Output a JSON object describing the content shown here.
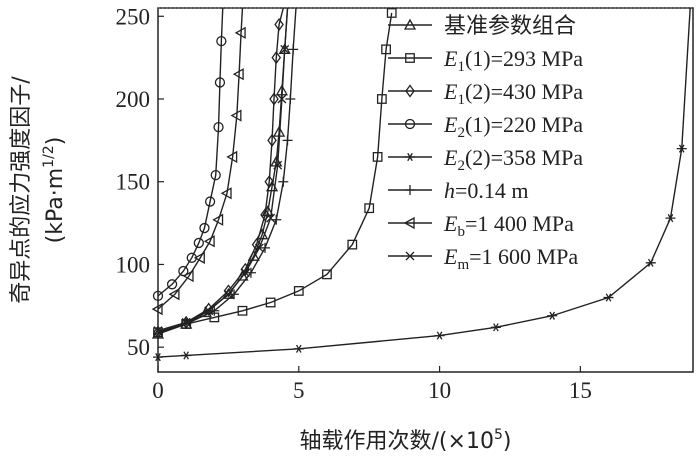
{
  "chart_data": {
    "type": "line",
    "title": "",
    "xlabel": "轴载作用次数/(×10",
    "xlabel_sup": "5",
    "xlabel_end": ")",
    "ylabel_line1": "奇异点的应力强度因子/",
    "ylabel_line2_a": "(kPa·m",
    "ylabel_line2_sup": "1/2",
    "ylabel_line2_b": ")",
    "xlim": [
      0,
      19
    ],
    "ylim": [
      35,
      255
    ],
    "xticks": [
      0,
      5,
      10,
      15
    ],
    "yticks": [
      50,
      100,
      150,
      200,
      250
    ],
    "grid": false,
    "legend_position": "top-right",
    "series": [
      {
        "name": "基准参数组合",
        "marker": "triangle-up",
        "x": [
          0,
          1,
          1.7,
          2.5,
          3.0,
          3.4,
          3.7,
          3.9,
          4.05,
          4.2,
          4.3,
          4.4,
          4.5,
          4.6
        ],
        "y": [
          58,
          64,
          71,
          82,
          93,
          105,
          118,
          132,
          147,
          162,
          180,
          205,
          230,
          255
        ]
      },
      {
        "name": "E₁(1)=293 MPa",
        "name_parts": [
          "E",
          "1",
          "(1)=293 MPa"
        ],
        "marker": "square",
        "x": [
          0,
          1,
          2,
          3,
          4,
          5,
          6,
          6.9,
          7.5,
          7.8,
          7.95,
          8.1,
          8.3
        ],
        "y": [
          59,
          64,
          68,
          72,
          77,
          84,
          94,
          112,
          134,
          165,
          200,
          230,
          252
        ]
      },
      {
        "name": "E₁(2)=430 MPa",
        "name_parts": [
          "E",
          "1",
          "(2)=430 MPa"
        ],
        "marker": "diamond",
        "x": [
          0,
          1,
          1.8,
          2.5,
          3.1,
          3.5,
          3.8,
          3.95,
          4.05,
          4.12,
          4.2,
          4.3,
          4.45
        ],
        "y": [
          59,
          65,
          73,
          84,
          97,
          112,
          130,
          150,
          175,
          200,
          225,
          245,
          255
        ]
      },
      {
        "name": "E₂(1)=220 MPa",
        "name_parts": [
          "E",
          "2",
          "(1)=220 MPa"
        ],
        "marker": "circle",
        "x": [
          0,
          0.5,
          0.9,
          1.2,
          1.45,
          1.65,
          1.85,
          2.05,
          2.15,
          2.2,
          2.25,
          2.3
        ],
        "y": [
          81,
          88,
          96,
          104,
          113,
          122,
          138,
          154,
          183,
          210,
          235,
          255
        ]
      },
      {
        "name": "E₂(2)=358 MPa",
        "name_parts": [
          "E",
          "2",
          "(2)=358 MPa"
        ],
        "marker": "asterisk",
        "x": [
          0,
          1,
          5,
          10,
          12,
          14,
          16,
          17.5,
          18.2,
          18.6,
          18.9
        ],
        "y": [
          44,
          45,
          49,
          57,
          62,
          69,
          80,
          101,
          128,
          170,
          255
        ]
      },
      {
        "name": "h=0.14 m",
        "name_parts": [
          "h",
          "",
          "=0.14 m"
        ],
        "marker": "plus",
        "x": [
          0,
          1,
          2,
          2.7,
          3.3,
          3.8,
          4.2,
          4.45,
          4.6,
          4.7,
          4.8,
          4.9
        ],
        "y": [
          58,
          64,
          72,
          82,
          95,
          110,
          127,
          150,
          175,
          200,
          230,
          255
        ]
      },
      {
        "name": "Eb=1 400 MPa",
        "name_parts": [
          "E",
          "b",
          "=1 400 MPa"
        ],
        "marker": "triangle-left",
        "x": [
          0,
          0.6,
          1.1,
          1.5,
          1.85,
          2.15,
          2.45,
          2.65,
          2.8,
          2.88,
          2.95,
          3.0
        ],
        "y": [
          73,
          82,
          93,
          104,
          114,
          127,
          143,
          165,
          190,
          215,
          240,
          255
        ]
      },
      {
        "name": "Em=1 600 MPa",
        "name_parts": [
          "E",
          "m",
          "=1 600 MPa"
        ],
        "marker": "x",
        "x": [
          0,
          1,
          1.8,
          2.5,
          3.1,
          3.6,
          4.0,
          4.25,
          4.4,
          4.5,
          4.6
        ],
        "y": [
          60,
          65,
          72,
          82,
          95,
          110,
          128,
          160,
          200,
          230,
          255
        ]
      }
    ]
  }
}
